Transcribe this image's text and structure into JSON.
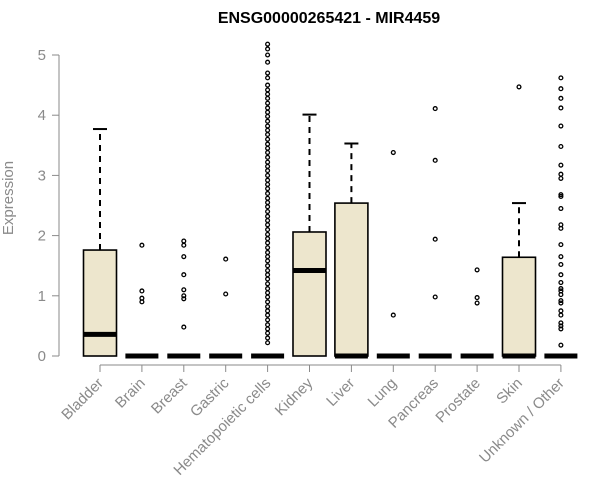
{
  "chart_data": {
    "type": "boxplot",
    "title": "ENSG00000265421 - MIR4459",
    "xlabel": "",
    "ylabel": "Expression",
    "ylim": [
      0,
      5.2
    ],
    "yticks": [
      0,
      1,
      2,
      3,
      4,
      5
    ],
    "grid": false,
    "box_fill": "#ede6cd",
    "categories": [
      "Bladder",
      "Brain",
      "Breast",
      "Gastric",
      "Hematopoietic cells",
      "Kidney",
      "Liver",
      "Lung",
      "Pancreas",
      "Prostate",
      "Skin",
      "Unknown / Other"
    ],
    "boxes": [
      {
        "category": "Bladder",
        "q1": 0,
        "median": 0.36,
        "q3": 1.76,
        "whisker_low": 0,
        "whisker_high": 3.77,
        "outliers": []
      },
      {
        "category": "Brain",
        "q1": 0,
        "median": 0,
        "q3": 0,
        "whisker_low": 0,
        "whisker_high": 0,
        "outliers": [
          1.84,
          1.08,
          0.96,
          0.9
        ]
      },
      {
        "category": "Breast",
        "q1": 0,
        "median": 0,
        "q3": 0,
        "whisker_low": 0,
        "whisker_high": 0,
        "outliers": [
          1.91,
          1.84,
          1.65,
          1.35,
          1.1,
          1.0,
          0.95,
          0.48
        ]
      },
      {
        "category": "Gastric",
        "q1": 0,
        "median": 0,
        "q3": 0,
        "whisker_low": 0,
        "whisker_high": 0,
        "outliers": [
          1.61,
          1.03
        ]
      },
      {
        "category": "Hematopoietic cells",
        "q1": 0,
        "median": 0,
        "q3": 0,
        "whisker_low": 0,
        "whisker_high": 0,
        "outliers": [
          5.18,
          5.1,
          5.0,
          4.88,
          4.7,
          4.62,
          4.5,
          4.42,
          4.35,
          4.28,
          4.2,
          4.12,
          4.05,
          3.98,
          3.9,
          3.82,
          3.75,
          3.68,
          3.6,
          3.52,
          3.45,
          3.38,
          3.3,
          3.22,
          3.15,
          3.08,
          3.0,
          2.92,
          2.85,
          2.78,
          2.7,
          2.62,
          2.55,
          2.48,
          2.4,
          2.32,
          2.25,
          2.18,
          2.1,
          2.02,
          1.95,
          1.88,
          1.8,
          1.72,
          1.65,
          1.58,
          1.5,
          1.42,
          1.35,
          1.28,
          1.2,
          1.12,
          1.05,
          0.98,
          0.9,
          0.82,
          0.75,
          0.68,
          0.6,
          0.52,
          0.45,
          0.38,
          0.3,
          0.22
        ]
      },
      {
        "category": "Kidney",
        "q1": 0,
        "median": 1.42,
        "q3": 2.06,
        "whisker_low": 0,
        "whisker_high": 4.01,
        "outliers": []
      },
      {
        "category": "Liver",
        "q1": 0,
        "median": 0,
        "q3": 2.54,
        "whisker_low": 0,
        "whisker_high": 3.53,
        "outliers": []
      },
      {
        "category": "Lung",
        "q1": 0,
        "median": 0,
        "q3": 0,
        "whisker_low": 0,
        "whisker_high": 0,
        "outliers": [
          3.38,
          0.68
        ]
      },
      {
        "category": "Pancreas",
        "q1": 0,
        "median": 0,
        "q3": 0,
        "whisker_low": 0,
        "whisker_high": 0,
        "outliers": [
          4.11,
          3.25,
          1.94,
          0.98
        ]
      },
      {
        "category": "Prostate",
        "q1": 0,
        "median": 0,
        "q3": 0,
        "whisker_low": 0,
        "whisker_high": 0,
        "outliers": [
          1.43,
          0.97,
          0.88
        ]
      },
      {
        "category": "Skin",
        "q1": 0,
        "median": 0,
        "q3": 1.64,
        "whisker_low": 0,
        "whisker_high": 2.54,
        "outliers": [
          4.47
        ]
      },
      {
        "category": "Unknown / Other",
        "q1": 0,
        "median": 0,
        "q3": 0,
        "whisker_low": 0,
        "whisker_high": 0,
        "outliers": [
          4.62,
          4.44,
          4.28,
          4.12,
          3.82,
          3.48,
          3.17,
          3.02,
          2.95,
          2.68,
          2.65,
          2.45,
          2.18,
          2.12,
          1.85,
          1.65,
          1.52,
          1.35,
          1.22,
          1.12,
          1.08,
          1.02,
          0.92,
          0.88,
          0.75,
          0.68,
          0.55,
          0.5,
          0.45,
          0.18
        ]
      }
    ]
  }
}
